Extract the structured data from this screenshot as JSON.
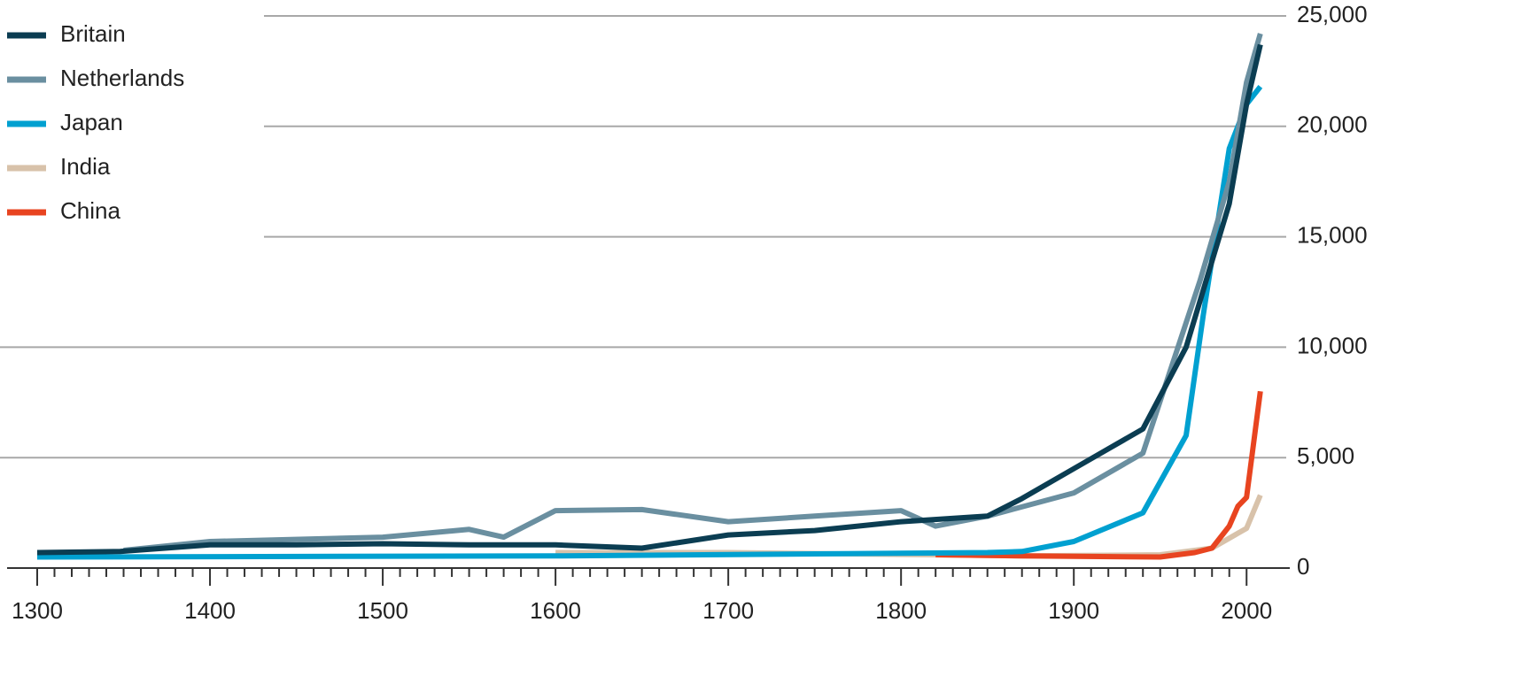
{
  "chart_data": {
    "type": "line",
    "xlim": [
      1280,
      2025
    ],
    "xticks": [
      1300,
      1400,
      1500,
      1600,
      1700,
      1800,
      1900,
      2000
    ],
    "ylim": [
      0,
      25000
    ],
    "yticks": [
      0,
      {
        "value": 5000,
        "label": "5,000"
      },
      {
        "value": 10000,
        "label": "10,000"
      },
      {
        "value": 15000,
        "label": "15,000"
      },
      {
        "value": 20000,
        "label": "20,000"
      },
      {
        "value": 25000,
        "label": "25,000"
      }
    ],
    "grid": true,
    "legend": "top-left",
    "series": [
      {
        "name": "Britain",
        "color": "#0b3d52",
        "x": [
          1300,
          1348,
          1400,
          1450,
          1500,
          1550,
          1600,
          1650,
          1700,
          1750,
          1800,
          1850,
          1870,
          1900,
          1940,
          1965,
          1990,
          2000,
          2008
        ],
        "values": [
          700,
          750,
          1050,
          1050,
          1100,
          1050,
          1050,
          900,
          1500,
          1700,
          2100,
          2350,
          3150,
          4500,
          6300,
          10000,
          16500,
          21000,
          23700
        ]
      },
      {
        "name": "Netherlands",
        "color": "#6a8fa0",
        "x": [
          1350,
          1400,
          1500,
          1550,
          1570,
          1600,
          1650,
          1700,
          1750,
          1800,
          1820,
          1850,
          1900,
          1940,
          1973,
          1990,
          2000,
          2008
        ],
        "values": [
          800,
          1200,
          1400,
          1750,
          1400,
          2600,
          2650,
          2100,
          2350,
          2600,
          1900,
          2350,
          3400,
          5200,
          13000,
          17500,
          22000,
          24200
        ]
      },
      {
        "name": "Japan",
        "color": "#00a0d0",
        "x": [
          1300,
          1600,
          1850,
          1870,
          1900,
          1940,
          1965,
          1975,
          1990,
          2000,
          2008
        ],
        "values": [
          500,
          550,
          700,
          750,
          1200,
          2500,
          6000,
          11500,
          19000,
          21000,
          21800
        ]
      },
      {
        "name": "India",
        "color": "#d8c2aa",
        "x": [
          1600,
          1700,
          1820,
          1870,
          1950,
          1980,
          2000,
          2008
        ],
        "values": [
          700,
          700,
          600,
          550,
          600,
          900,
          1800,
          3300
        ]
      },
      {
        "name": "China",
        "color": "#e84420",
        "x": [
          1820,
          1870,
          1950,
          1970,
          1980,
          1990,
          1995,
          2000,
          2008
        ],
        "values": [
          600,
          550,
          500,
          700,
          900,
          1900,
          2800,
          3200,
          8000
        ]
      }
    ]
  }
}
